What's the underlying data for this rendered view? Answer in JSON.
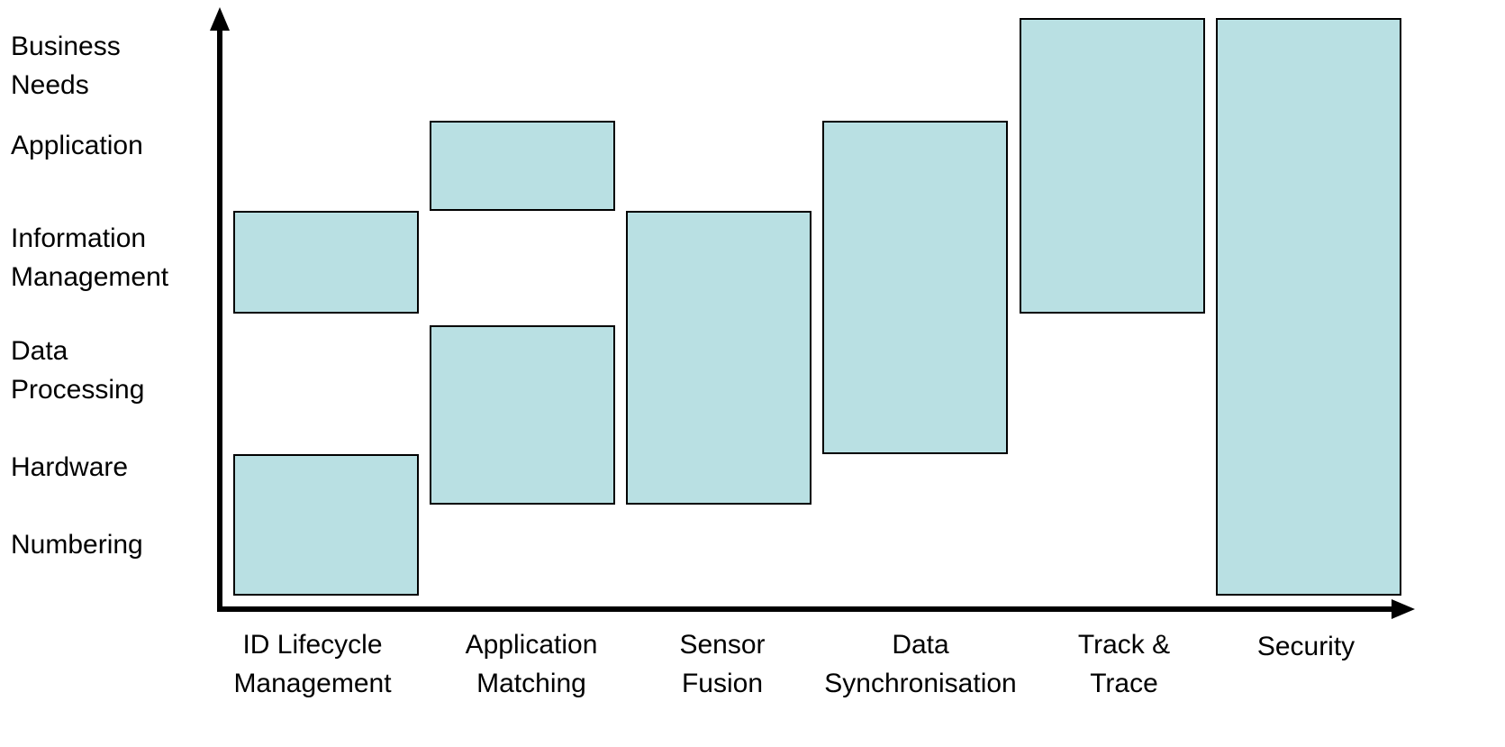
{
  "colors": {
    "block_fill": "#b9e0e3",
    "axis": "#000000"
  },
  "y_levels": [
    {
      "id": "business-needs",
      "label": [
        "Business",
        "Needs"
      ]
    },
    {
      "id": "application",
      "label": [
        "Application"
      ]
    },
    {
      "id": "information-management",
      "label": [
        "Information",
        "Management"
      ]
    },
    {
      "id": "data-processing",
      "label": [
        "Data",
        "Processing"
      ]
    },
    {
      "id": "hardware",
      "label": [
        "Hardware"
      ]
    },
    {
      "id": "numbering",
      "label": [
        "Numbering"
      ]
    }
  ],
  "x_categories": [
    {
      "id": "id-lifecycle-management",
      "label": [
        "ID Lifecycle",
        "Management"
      ]
    },
    {
      "id": "application-matching",
      "label": [
        "Application",
        "Matching"
      ]
    },
    {
      "id": "sensor-fusion",
      "label": [
        "Sensor",
        "Fusion"
      ]
    },
    {
      "id": "data-synchronisation",
      "label": [
        "Data",
        "Synchronisation"
      ]
    },
    {
      "id": "track-trace",
      "label": [
        "Track &",
        "Trace"
      ]
    },
    {
      "id": "security",
      "label": [
        "Security"
      ]
    }
  ],
  "coverage": [
    {
      "category": "id-lifecycle-management",
      "from": "numbering",
      "to": "hardware"
    },
    {
      "category": "id-lifecycle-management",
      "from": "information-management",
      "to": "information-management"
    },
    {
      "category": "application-matching",
      "from": "hardware",
      "to": "data-processing"
    },
    {
      "category": "application-matching",
      "from": "application",
      "to": "application"
    },
    {
      "category": "sensor-fusion",
      "from": "hardware",
      "to": "information-management"
    },
    {
      "category": "data-synchronisation",
      "from": "data-processing",
      "to": "application"
    },
    {
      "category": "track-trace",
      "from": "information-management",
      "to": "business-needs"
    },
    {
      "category": "security",
      "from": "numbering",
      "to": "business-needs"
    }
  ]
}
